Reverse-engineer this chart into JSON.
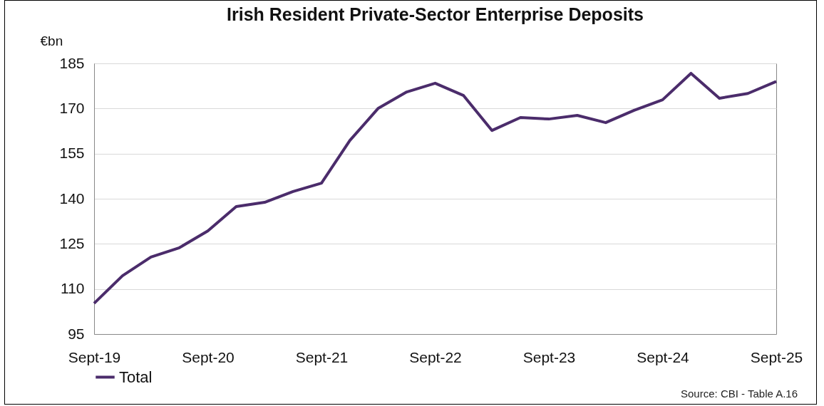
{
  "chart_data": {
    "type": "line",
    "title": "Irish Resident Private-Sector Enterprise Deposits",
    "ylabel": "€bn",
    "categories": [
      "Sept-19",
      null,
      null,
      null,
      "Sept-20",
      null,
      null,
      null,
      "Sept-21",
      null,
      null,
      null,
      "Sept-22",
      null,
      null,
      null,
      "Sept-23",
      null,
      null,
      null,
      "Sept-24",
      null,
      null,
      null,
      "Sept-25"
    ],
    "series": [
      {
        "name": "Total",
        "color": "#4b2c6b",
        "values": [
          105.2,
          114.4,
          120.6,
          123.7,
          129.3,
          137.4,
          138.8,
          142.4,
          145.2,
          159.4,
          170.1,
          175.5,
          178.4,
          174.3,
          162.7,
          167,
          166.5,
          167.7,
          165.3,
          169.4,
          172.9,
          181.7,
          173.4,
          175,
          179
        ]
      }
    ],
    "ylim": [
      95,
      185
    ],
    "yticks": [
      95,
      110,
      125,
      140,
      155,
      170,
      185
    ],
    "grid": "y",
    "legend": "bottom left",
    "marker": "none",
    "line_style": "solid",
    "annotations": [
      "Source: CBI - Table A.16"
    ]
  }
}
